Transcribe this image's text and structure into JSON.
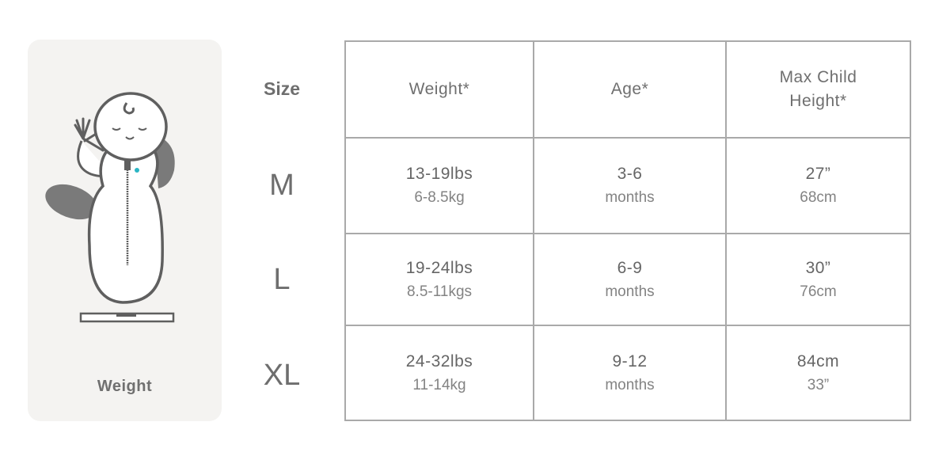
{
  "illustration": {
    "label": "Weight",
    "accent_color": "#2bb5c4"
  },
  "size_column": {
    "header": "Size",
    "sizes": [
      "M",
      "L",
      "XL"
    ]
  },
  "table": {
    "headers": [
      "Weight*",
      "Age*",
      "Max Child Height*"
    ],
    "rows": [
      {
        "weight": {
          "main": "13-19lbs",
          "sub": "6-8.5kg"
        },
        "age": {
          "main": "3-6",
          "sub": "months"
        },
        "height": {
          "main": "27”",
          "sub": "68cm"
        }
      },
      {
        "weight": {
          "main": "19-24lbs",
          "sub": "8.5-11kgs"
        },
        "age": {
          "main": "6-9",
          "sub": "months"
        },
        "height": {
          "main": "30”",
          "sub": "76cm"
        }
      },
      {
        "weight": {
          "main": "24-32lbs",
          "sub": "11-14kg"
        },
        "age": {
          "main": "9-12",
          "sub": "months"
        },
        "height": {
          "main": "84cm",
          "sub": "33”"
        }
      }
    ]
  }
}
